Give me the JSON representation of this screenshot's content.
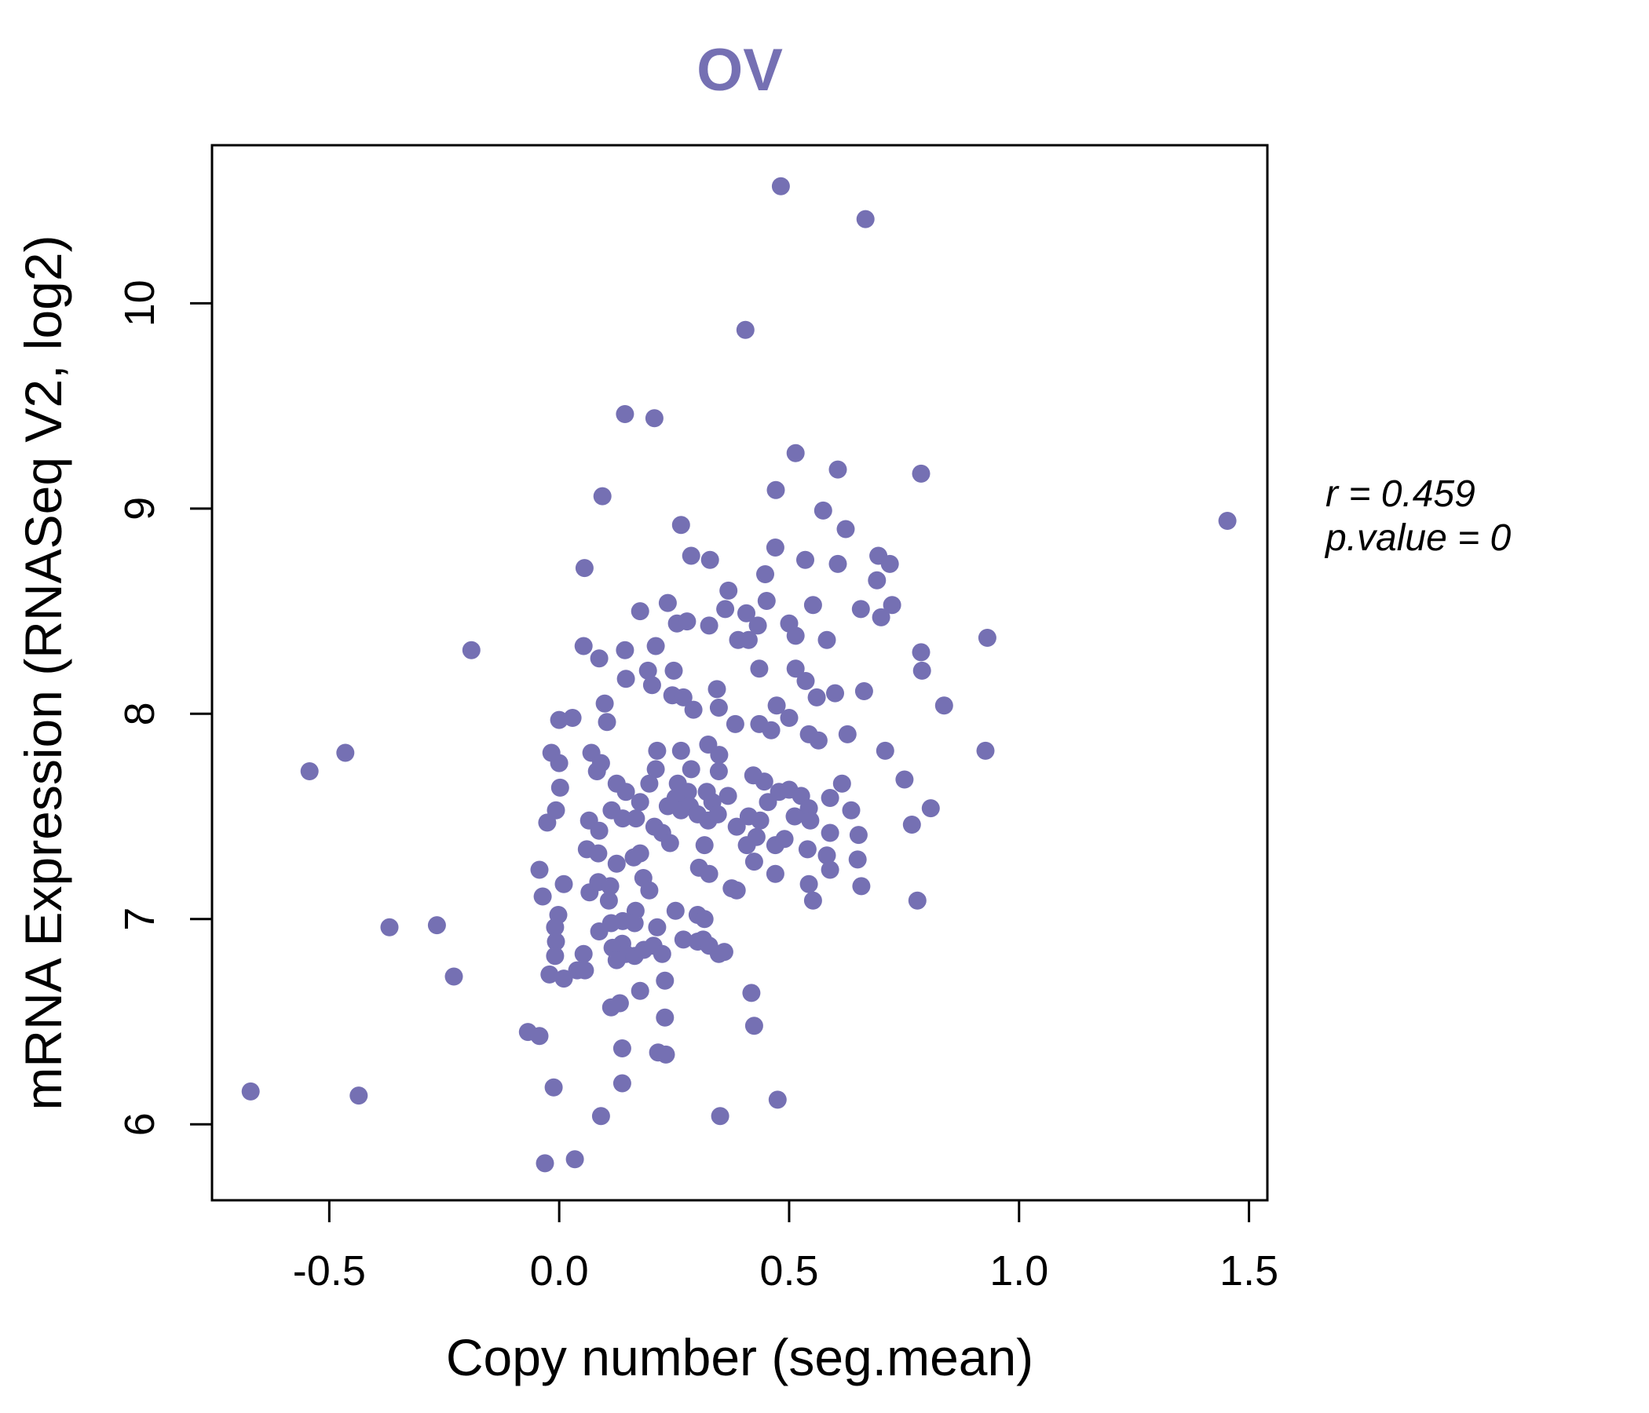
{
  "title": "OV",
  "annotation": {
    "line1": "r = 0.459",
    "line2": "p.value = 0"
  },
  "colors": {
    "point": "#7570b3",
    "title": "#7570b3",
    "axis": "#000000"
  },
  "chart_data": {
    "type": "scatter",
    "title": "OV",
    "xlabel": "Copy number (seg.mean)",
    "ylabel": "mRNA Expression (RNASeq V2, log2)",
    "xlim": [
      -0.755,
      1.54
    ],
    "ylim": [
      5.63,
      10.77
    ],
    "xticks": [
      -0.5,
      0.0,
      0.5,
      1.0,
      1.5
    ],
    "xtick_labels": [
      "-0.5",
      "0.0",
      "0.5",
      "1.0",
      "1.5"
    ],
    "yticks": [
      6,
      7,
      8,
      9,
      10
    ],
    "ytick_labels": [
      "6",
      "7",
      "8",
      "9",
      "10"
    ],
    "grid": false,
    "correlation_r": 0.459,
    "p_value": 0,
    "point_radius_px": 11.5,
    "points": [
      [
        0.482,
        10.57
      ],
      [
        0.666,
        10.41
      ],
      [
        0.405,
        9.87
      ],
      [
        0.143,
        9.46
      ],
      [
        0.207,
        9.44
      ],
      [
        0.514,
        9.27
      ],
      [
        0.606,
        9.19
      ],
      [
        0.471,
        9.09
      ],
      [
        0.787,
        9.17
      ],
      [
        0.094,
        9.06
      ],
      [
        -0.191,
        8.31
      ],
      [
        -0.465,
        7.81
      ],
      [
        -0.543,
        7.72
      ],
      [
        0.0,
        7.97
      ],
      [
        -0.017,
        7.81
      ],
      [
        0.0,
        7.76
      ],
      [
        0.002,
        7.64
      ],
      [
        -0.007,
        7.53
      ],
      [
        -0.026,
        7.47
      ],
      [
        0.574,
        8.99
      ],
      [
        0.265,
        8.92
      ],
      [
        0.623,
        8.9
      ],
      [
        0.287,
        8.77
      ],
      [
        0.328,
        8.75
      ],
      [
        0.47,
        8.81
      ],
      [
        0.535,
        8.75
      ],
      [
        0.606,
        8.73
      ],
      [
        0.448,
        8.68
      ],
      [
        0.694,
        8.77
      ],
      [
        0.719,
        8.73
      ],
      [
        0.055,
        8.71
      ],
      [
        0.691,
        8.65
      ],
      [
        0.368,
        8.6
      ],
      [
        0.451,
        8.55
      ],
      [
        0.176,
        8.5
      ],
      [
        0.236,
        8.54
      ],
      [
        0.361,
        8.51
      ],
      [
        0.407,
        8.49
      ],
      [
        0.432,
        8.43
      ],
      [
        0.552,
        8.53
      ],
      [
        0.656,
        8.51
      ],
      [
        0.724,
        8.53
      ],
      [
        0.7,
        8.47
      ],
      [
        0.256,
        8.44
      ],
      [
        0.278,
        8.45
      ],
      [
        0.326,
        8.43
      ],
      [
        0.389,
        8.36
      ],
      [
        0.412,
        8.36
      ],
      [
        0.5,
        8.44
      ],
      [
        0.514,
        8.38
      ],
      [
        0.582,
        8.36
      ],
      [
        0.053,
        8.33
      ],
      [
        0.143,
        8.31
      ],
      [
        0.21,
        8.33
      ],
      [
        0.087,
        8.27
      ],
      [
        0.435,
        8.22
      ],
      [
        0.514,
        8.22
      ],
      [
        0.536,
        8.16
      ],
      [
        0.663,
        8.11
      ],
      [
        0.145,
        8.17
      ],
      [
        0.193,
        8.21
      ],
      [
        0.202,
        8.14
      ],
      [
        0.249,
        8.21
      ],
      [
        0.246,
        8.09
      ],
      [
        0.27,
        8.08
      ],
      [
        0.343,
        8.12
      ],
      [
        0.347,
        8.03
      ],
      [
        0.099,
        8.05
      ],
      [
        0.029,
        7.98
      ],
      [
        0.292,
        8.02
      ],
      [
        0.473,
        8.04
      ],
      [
        0.5,
        7.98
      ],
      [
        0.56,
        8.08
      ],
      [
        0.6,
        8.1
      ],
      [
        0.751,
        7.68
      ],
      [
        0.104,
        7.96
      ],
      [
        0.07,
        7.81
      ],
      [
        0.091,
        7.76
      ],
      [
        0.213,
        7.82
      ],
      [
        0.265,
        7.82
      ],
      [
        0.287,
        7.73
      ],
      [
        0.324,
        7.85
      ],
      [
        0.348,
        7.8
      ],
      [
        0.347,
        7.72
      ],
      [
        0.383,
        7.95
      ],
      [
        0.435,
        7.95
      ],
      [
        0.461,
        7.92
      ],
      [
        0.543,
        7.9
      ],
      [
        0.564,
        7.87
      ],
      [
        0.627,
        7.9
      ],
      [
        0.709,
        7.82
      ],
      [
        0.125,
        7.66
      ],
      [
        0.145,
        7.62
      ],
      [
        0.082,
        7.72
      ],
      [
        0.196,
        7.66
      ],
      [
        0.21,
        7.73
      ],
      [
        0.258,
        7.66
      ],
      [
        0.28,
        7.62
      ],
      [
        0.367,
        7.6
      ],
      [
        0.321,
        7.62
      ],
      [
        0.333,
        7.57
      ],
      [
        0.422,
        7.7
      ],
      [
        0.446,
        7.67
      ],
      [
        0.478,
        7.62
      ],
      [
        0.5,
        7.63
      ],
      [
        0.526,
        7.6
      ],
      [
        0.543,
        7.54
      ],
      [
        0.615,
        7.66
      ],
      [
        0.635,
        7.53
      ],
      [
        0.589,
        7.42
      ],
      [
        0.651,
        7.41
      ],
      [
        0.114,
        7.53
      ],
      [
        0.138,
        7.49
      ],
      [
        0.065,
        7.48
      ],
      [
        0.087,
        7.43
      ],
      [
        0.176,
        7.57
      ],
      [
        0.167,
        7.49
      ],
      [
        0.207,
        7.45
      ],
      [
        0.236,
        7.55
      ],
      [
        0.253,
        7.59
      ],
      [
        0.265,
        7.53
      ],
      [
        0.284,
        7.55
      ],
      [
        0.301,
        7.51
      ],
      [
        0.224,
        7.42
      ],
      [
        0.241,
        7.37
      ],
      [
        0.324,
        7.48
      ],
      [
        0.345,
        7.51
      ],
      [
        0.386,
        7.45
      ],
      [
        0.412,
        7.5
      ],
      [
        0.437,
        7.48
      ],
      [
        0.454,
        7.57
      ],
      [
        0.512,
        7.5
      ],
      [
        0.546,
        7.48
      ],
      [
        0.589,
        7.59
      ],
      [
        0.429,
        7.4
      ],
      [
        0.47,
        7.36
      ],
      [
        0.49,
        7.39
      ],
      [
        0.767,
        7.46
      ],
      [
        0.316,
        7.36
      ],
      [
        0.06,
        7.34
      ],
      [
        0.408,
        7.36
      ],
      [
        0.54,
        7.34
      ],
      [
        1.453,
        8.94
      ],
      [
        0.931,
        8.37
      ],
      [
        0.787,
        8.3
      ],
      [
        0.789,
        8.21
      ],
      [
        0.837,
        8.04
      ],
      [
        0.927,
        7.82
      ],
      [
        0.808,
        7.54
      ],
      [
        -0.043,
        7.24
      ],
      [
        0.01,
        7.17
      ],
      [
        -0.036,
        7.11
      ],
      [
        -0.369,
        6.96
      ],
      [
        -0.266,
        6.97
      ],
      [
        -0.002,
        7.02
      ],
      [
        -0.009,
        6.96
      ],
      [
        -0.007,
        6.89
      ],
      [
        -0.009,
        6.82
      ],
      [
        -0.229,
        6.72
      ],
      [
        -0.021,
        6.73
      ],
      [
        0.01,
        6.71
      ],
      [
        -0.068,
        6.45
      ],
      [
        -0.043,
        6.43
      ],
      [
        -0.671,
        6.16
      ],
      [
        -0.436,
        6.14
      ],
      [
        -0.012,
        6.18
      ],
      [
        -0.031,
        5.81
      ],
      [
        0.085,
        7.32
      ],
      [
        0.125,
        7.27
      ],
      [
        0.162,
        7.3
      ],
      [
        0.176,
        7.32
      ],
      [
        0.066,
        7.13
      ],
      [
        0.085,
        7.18
      ],
      [
        0.111,
        7.16
      ],
      [
        0.108,
        7.09
      ],
      [
        0.183,
        7.2
      ],
      [
        0.196,
        7.14
      ],
      [
        0.166,
        7.04
      ],
      [
        0.253,
        7.04
      ],
      [
        0.304,
        7.25
      ],
      [
        0.326,
        7.22
      ],
      [
        0.301,
        7.02
      ],
      [
        0.316,
        7.0
      ],
      [
        0.375,
        7.15
      ],
      [
        0.386,
        7.14
      ],
      [
        0.424,
        7.28
      ],
      [
        0.47,
        7.22
      ],
      [
        0.543,
        7.17
      ],
      [
        0.552,
        7.09
      ],
      [
        0.582,
        7.31
      ],
      [
        0.589,
        7.24
      ],
      [
        0.649,
        7.29
      ],
      [
        0.657,
        7.16
      ],
      [
        0.779,
        7.09
      ],
      [
        0.087,
        6.94
      ],
      [
        0.113,
        6.98
      ],
      [
        0.138,
        6.99
      ],
      [
        0.164,
        6.98
      ],
      [
        0.213,
        6.96
      ],
      [
        0.116,
        6.86
      ],
      [
        0.137,
        6.88
      ],
      [
        0.145,
        6.83
      ],
      [
        0.125,
        6.8
      ],
      [
        0.164,
        6.82
      ],
      [
        0.184,
        6.85
      ],
      [
        0.205,
        6.87
      ],
      [
        0.224,
        6.83
      ],
      [
        0.053,
        6.83
      ],
      [
        0.039,
        6.75
      ],
      [
        0.056,
        6.75
      ],
      [
        0.27,
        6.9
      ],
      [
        0.301,
        6.89
      ],
      [
        0.313,
        6.9
      ],
      [
        0.326,
        6.87
      ],
      [
        0.347,
        6.83
      ],
      [
        0.359,
        6.84
      ],
      [
        0.23,
        6.7
      ],
      [
        0.176,
        6.65
      ],
      [
        0.23,
        6.52
      ],
      [
        0.113,
        6.57
      ],
      [
        0.132,
        6.59
      ],
      [
        0.418,
        6.64
      ],
      [
        0.424,
        6.48
      ],
      [
        0.137,
        6.37
      ],
      [
        0.215,
        6.35
      ],
      [
        0.232,
        6.34
      ],
      [
        0.137,
        6.2
      ],
      [
        0.091,
        6.04
      ],
      [
        0.35,
        6.04
      ],
      [
        0.475,
        6.12
      ],
      [
        0.034,
        5.83
      ]
    ]
  }
}
